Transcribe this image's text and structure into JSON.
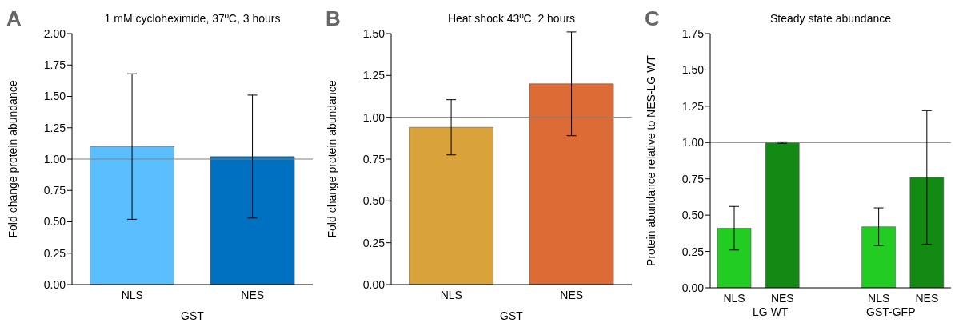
{
  "chart_data": [
    {
      "type": "bar",
      "title": "1 mM cycloheximide, 37ºC, 3 hours",
      "xlabel": "GST",
      "ylabel": "Fold change protein abundance",
      "categories": [
        "NLS",
        "NES"
      ],
      "values": [
        1.1,
        1.02
      ],
      "errors": [
        0.58,
        0.49
      ],
      "colors": [
        "#5bbfff",
        "#0070c0"
      ],
      "ylim": [
        0,
        2
      ],
      "yticks": [
        {
          "value": 0,
          "label": "0.00"
        },
        {
          "value": 0.25,
          "label": "0.25"
        },
        {
          "value": 0.5,
          "label": "0.50"
        },
        {
          "value": 0.75,
          "label": "0.75"
        },
        {
          "value": 1,
          "label": "1.00"
        },
        {
          "value": 1.25,
          "label": "1.25"
        },
        {
          "value": 1.5,
          "label": "1.50"
        },
        {
          "value": 1.75,
          "label": "1.75"
        },
        {
          "value": 2,
          "label": "2.00"
        }
      ],
      "ref_lines": [
        {
          "axis": "y",
          "value": 1,
          "label": null,
          "color": "#808080"
        }
      ],
      "annotations": [
        "A"
      ]
    },
    {
      "type": "bar",
      "title": "Heat shock 43ºC, 2 hours",
      "xlabel": "GST",
      "ylabel": "Fold change protein abundance",
      "categories": [
        "NLS",
        "NES"
      ],
      "values": [
        0.94,
        1.2
      ],
      "errors": [
        0.165,
        0.31
      ],
      "colors": [
        "#d9a23a",
        "#dd6b35"
      ],
      "ylim": [
        0,
        1.5
      ],
      "yticks": [
        {
          "value": 0,
          "label": "0.00"
        },
        {
          "value": 0.25,
          "label": "0.25"
        },
        {
          "value": 0.5,
          "label": "0.50"
        },
        {
          "value": 0.75,
          "label": "0.75"
        },
        {
          "value": 1,
          "label": "1.00"
        },
        {
          "value": 1.25,
          "label": "1.25"
        },
        {
          "value": 1.5,
          "label": "1.50"
        }
      ],
      "ref_lines": [
        {
          "axis": "y",
          "value": 1,
          "label": null,
          "color": "#808080"
        }
      ],
      "annotations": [
        "B"
      ]
    },
    {
      "type": "bar",
      "title": "Steady state abundance",
      "ylabel": "Protein abundance relative to NES-LG WT",
      "categories": [
        "NLS",
        "NES",
        null,
        "NLS",
        "NES"
      ],
      "values": [
        0.41,
        1.0,
        null,
        0.42,
        0.76
      ],
      "errors": [
        0.15,
        0.005,
        null,
        0.13,
        0.46
      ],
      "colors": [
        "#22cc22",
        "#138a13",
        "#ffffff",
        "#22cc22",
        "#138a13"
      ],
      "ylim": [
        0,
        1.75
      ],
      "yticks": [
        {
          "value": 0,
          "label": "0.00"
        },
        {
          "value": 0.25,
          "label": "0.25"
        },
        {
          "value": 0.5,
          "label": "0.50"
        },
        {
          "value": 0.75,
          "label": "0.75"
        },
        {
          "value": 1,
          "label": "1.00"
        },
        {
          "value": 1.25,
          "label": "1.25"
        },
        {
          "value": 1.5,
          "label": "1.50"
        },
        {
          "value": 1.75,
          "label": "1.75"
        }
      ],
      "ref_lines": [
        {
          "axis": "y",
          "value": 1,
          "label": null,
          "color": "#808080"
        }
      ],
      "annotations": [
        "C",
        "LG WT",
        "GST-GFP"
      ]
    }
  ]
}
